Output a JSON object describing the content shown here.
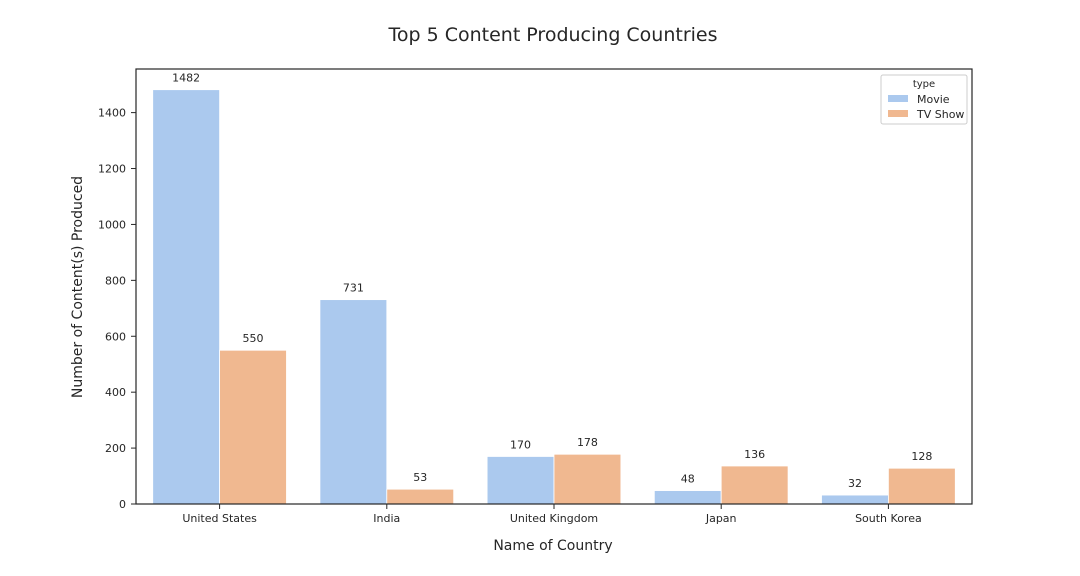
{
  "chart_data": {
    "type": "bar",
    "title": "Top 5 Content Producing Countries",
    "xlabel": "Name of Country",
    "ylabel": "Number of Content(s) Produced",
    "categories": [
      "United States",
      "India",
      "United Kingdom",
      "Japan",
      "South Korea"
    ],
    "series": [
      {
        "name": "Movie",
        "values": [
          1482,
          731,
          170,
          48,
          32
        ],
        "color": "#abc9ee"
      },
      {
        "name": "TV Show",
        "values": [
          550,
          53,
          178,
          136,
          128
        ],
        "color": "#f0b890"
      }
    ],
    "ylim": [
      0,
      1556
    ],
    "yticks": [
      0,
      200,
      400,
      600,
      800,
      1000,
      1200,
      1400
    ],
    "legend": {
      "title": "type",
      "placement": "top-right"
    },
    "grid": false,
    "data_labels": true
  }
}
